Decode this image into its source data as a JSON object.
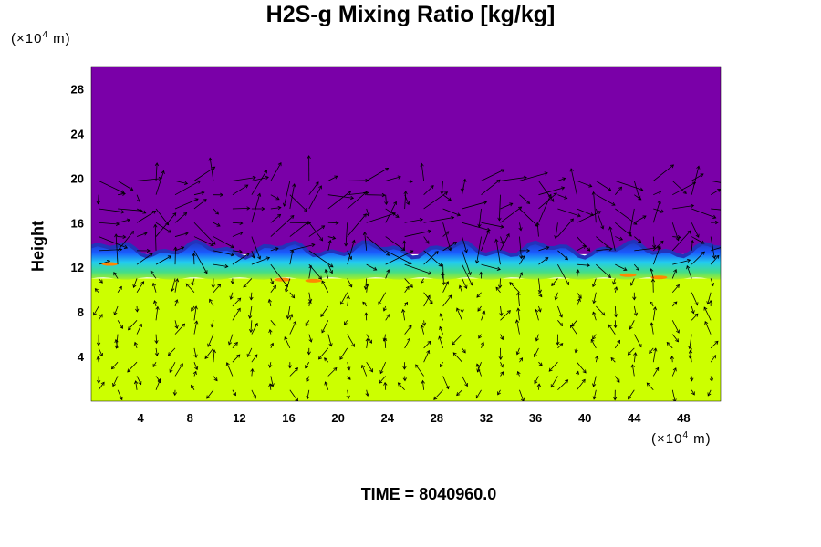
{
  "chart_data": {
    "type": "heatmap",
    "title": "H2S-g Mixing Ratio [kg/kg]",
    "ylabel": "Height",
    "xunit_prefix": "(×10",
    "xunit_exp": "4",
    "xunit_suffix": " m)",
    "yunit_prefix": "(×10",
    "yunit_exp": "4",
    "yunit_suffix": " m)",
    "xlim": [
      0,
      51
    ],
    "ylim": [
      0,
      30
    ],
    "xticks": [
      4,
      8,
      12,
      16,
      20,
      24,
      28,
      32,
      36,
      40,
      44,
      48
    ],
    "yticks": [
      4,
      8,
      12,
      16,
      20,
      24,
      28
    ],
    "overlay": "wind vector arrows",
    "colors": {
      "upper_background": "#7a00a8",
      "lower_field": "#ccff00",
      "band_green": "#aaee22",
      "band_blue": "#1a5cff",
      "band_darkblue": "#2233bb",
      "band_cyan": "#22ccee",
      "band_orange": "#ff8800"
    },
    "regions": [
      {
        "name": "low-concentration upper layer",
        "y_range": [
          13.5,
          30
        ]
      },
      {
        "name": "mixing band",
        "y_range": [
          11,
          14
        ]
      },
      {
        "name": "high-concentration lower layer",
        "y_range": [
          0,
          11
        ]
      }
    ]
  },
  "time_label": "TIME = 8040960.0"
}
